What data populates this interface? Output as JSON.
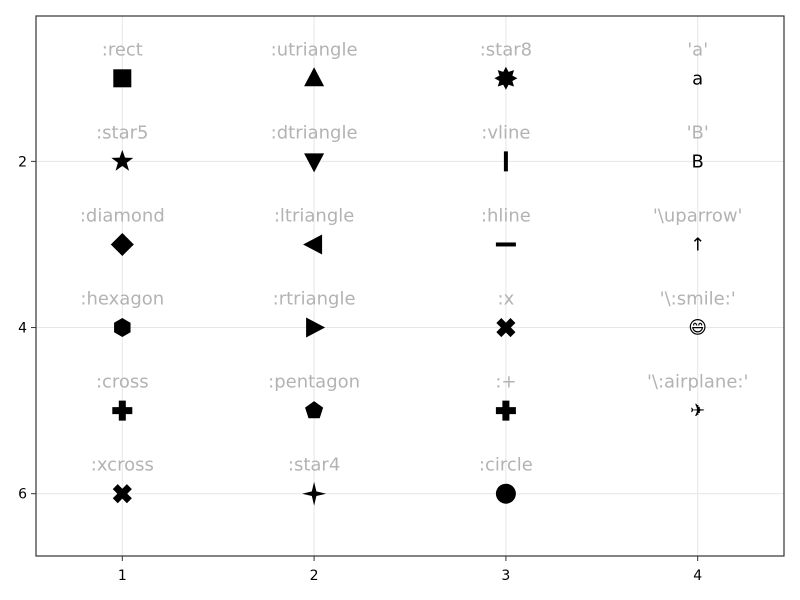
{
  "chart_data": {
    "type": "scatter",
    "title": "",
    "xlabel": "",
    "ylabel": "",
    "xlim": [
      0.55,
      4.45
    ],
    "ylim": [
      6.75,
      0.25
    ],
    "y_reversed": true,
    "grid": true,
    "x_ticks": [
      1,
      2,
      3,
      4
    ],
    "y_ticks": [
      2,
      4,
      6
    ],
    "points": [
      {
        "x": 1,
        "y": 1,
        "label": ":rect",
        "marker": "square"
      },
      {
        "x": 1,
        "y": 2,
        "label": ":star5",
        "marker": "star5"
      },
      {
        "x": 1,
        "y": 3,
        "label": ":diamond",
        "marker": "diamond"
      },
      {
        "x": 1,
        "y": 4,
        "label": ":hexagon",
        "marker": "hexagon"
      },
      {
        "x": 1,
        "y": 5,
        "label": ":cross",
        "marker": "cross"
      },
      {
        "x": 1,
        "y": 6,
        "label": ":xcross",
        "marker": "xcross"
      },
      {
        "x": 2,
        "y": 1,
        "label": ":utriangle",
        "marker": "utriangle"
      },
      {
        "x": 2,
        "y": 2,
        "label": ":dtriangle",
        "marker": "dtriangle"
      },
      {
        "x": 2,
        "y": 3,
        "label": ":ltriangle",
        "marker": "ltriangle"
      },
      {
        "x": 2,
        "y": 4,
        "label": ":rtriangle",
        "marker": "rtriangle"
      },
      {
        "x": 2,
        "y": 5,
        "label": ":pentagon",
        "marker": "pentagon"
      },
      {
        "x": 2,
        "y": 6,
        "label": ":star4",
        "marker": "star4"
      },
      {
        "x": 3,
        "y": 1,
        "label": ":star8",
        "marker": "star8"
      },
      {
        "x": 3,
        "y": 2,
        "label": ":vline",
        "marker": "vline"
      },
      {
        "x": 3,
        "y": 3,
        "label": ":hline",
        "marker": "hline"
      },
      {
        "x": 3,
        "y": 4,
        "label": ":x",
        "marker": "xcross"
      },
      {
        "x": 3,
        "y": 5,
        "label": ":+",
        "marker": "cross"
      },
      {
        "x": 3,
        "y": 6,
        "label": ":circle",
        "marker": "circle"
      },
      {
        "x": 4,
        "y": 1,
        "label": "'a'",
        "marker": "char",
        "char": "a"
      },
      {
        "x": 4,
        "y": 2,
        "label": "'B'",
        "marker": "char",
        "char": "B"
      },
      {
        "x": 4,
        "y": 3,
        "label": "'\\uparrow'",
        "marker": "char",
        "char": "↑"
      },
      {
        "x": 4,
        "y": 4,
        "label": "'\\:smile:'",
        "marker": "char",
        "char": "😄"
      },
      {
        "x": 4,
        "y": 5,
        "label": "'\\:airplane:'",
        "marker": "char",
        "char": "✈"
      }
    ]
  }
}
